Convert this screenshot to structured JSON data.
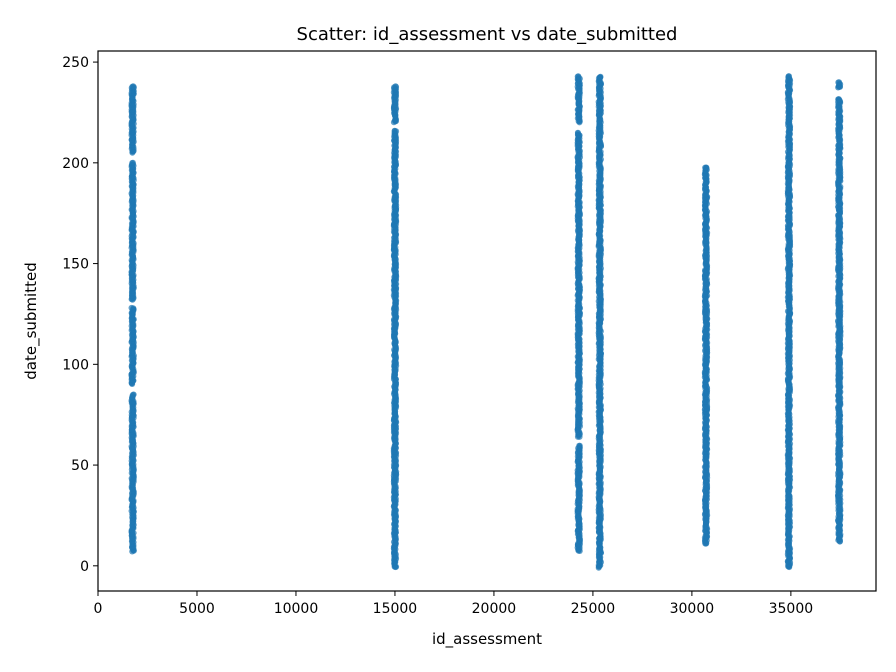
{
  "chart_data": {
    "type": "scatter",
    "title": "Scatter: id_assessment vs date_submitted",
    "xlabel": "id_assessment",
    "ylabel": "date_submitted",
    "xlim": [
      0,
      39300
    ],
    "ylim": [
      -12.5,
      255.5
    ],
    "xticks": [
      0,
      5000,
      10000,
      15000,
      20000,
      25000,
      30000,
      35000
    ],
    "yticks": [
      0,
      50,
      100,
      150,
      200,
      250
    ],
    "grid": false,
    "color": "#1f77b4",
    "clusters": [
      {
        "x": 1752,
        "y_ranges": [
          [
            7,
            85
          ],
          [
            90,
            128
          ],
          [
            132,
            200
          ],
          [
            205,
            238
          ]
        ]
      },
      {
        "x": 15003,
        "y_ranges": [
          [
            -1,
            216
          ],
          [
            220,
            238
          ]
        ]
      },
      {
        "x": 24286,
        "y_ranges": [
          [
            7,
            60
          ],
          [
            64,
            215
          ],
          [
            220,
            243
          ]
        ]
      },
      {
        "x": 25348,
        "y_ranges": [
          [
            -1,
            243
          ]
        ]
      },
      {
        "x": 30713,
        "y_ranges": [
          [
            11,
            198
          ]
        ]
      },
      {
        "x": 34903,
        "y_ranges": [
          [
            -1,
            243
          ]
        ]
      },
      {
        "x": 37443,
        "y_ranges": [
          [
            12,
            232
          ],
          [
            237,
            240
          ]
        ]
      }
    ]
  }
}
